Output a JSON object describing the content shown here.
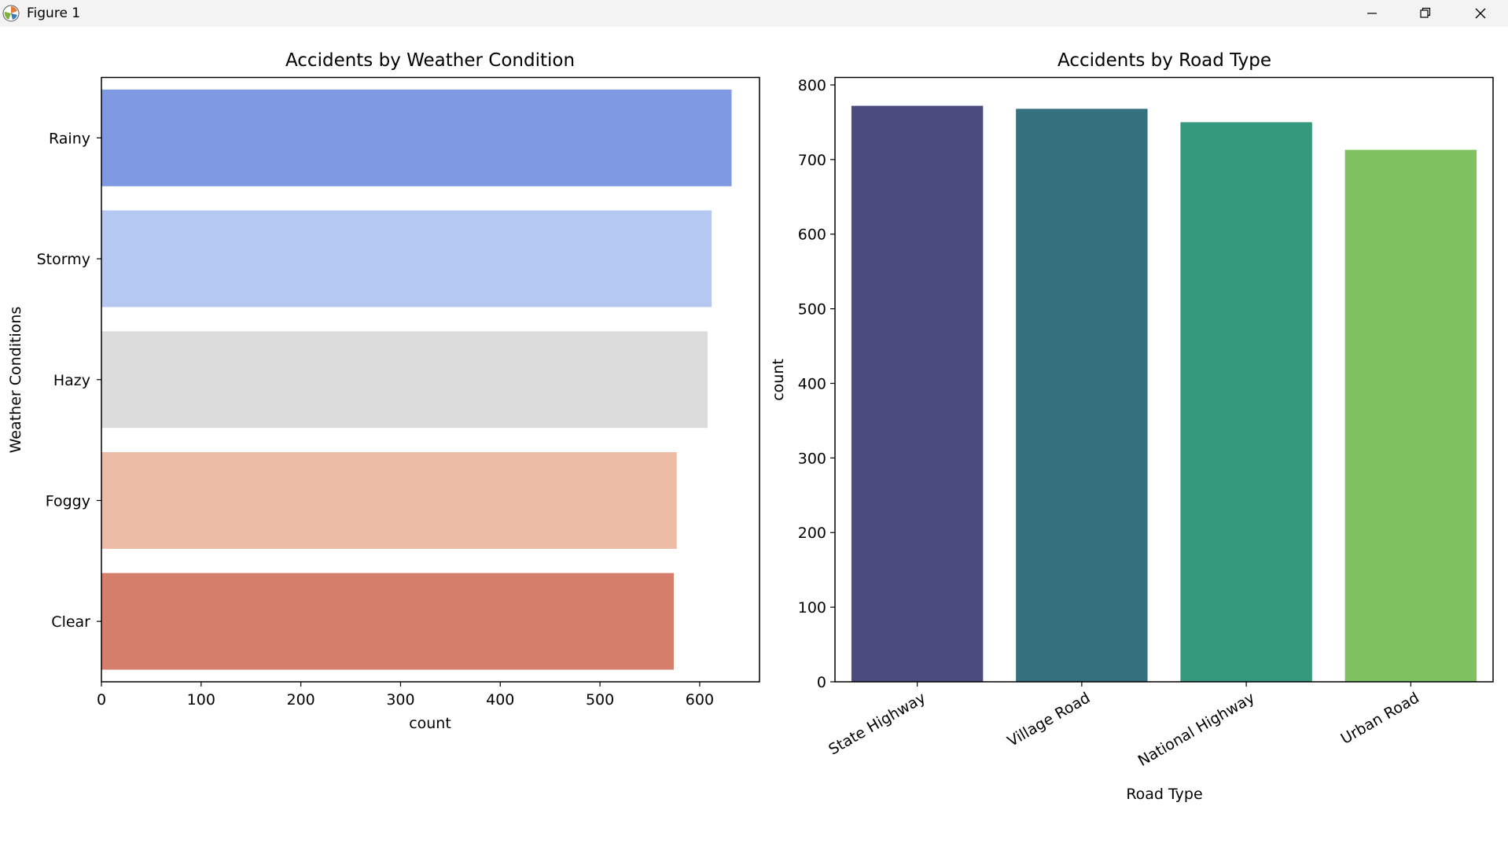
{
  "window": {
    "title": "Figure 1",
    "icons": {
      "app": "matplotlib-icon",
      "minimize": "minimize-icon",
      "maximize": "restore-icon",
      "close": "close-icon"
    }
  },
  "chart_data": [
    {
      "type": "bar",
      "orientation": "horizontal",
      "title": "Accidents by Weather Condition",
      "xlabel": "count",
      "ylabel": "Weather Conditions",
      "categories": [
        "Rainy",
        "Stormy",
        "Hazy",
        "Foggy",
        "Clear"
      ],
      "values": [
        632,
        612,
        608,
        577,
        574
      ],
      "colors": [
        "#7f9ae2",
        "#b4c8f2",
        "#dcdcdc",
        "#ecbca7",
        "#d67e6c"
      ],
      "xlim": [
        0,
        660
      ],
      "xticks": [
        0,
        100,
        200,
        300,
        400,
        500,
        600
      ],
      "grid": false
    },
    {
      "type": "bar",
      "orientation": "vertical",
      "title": "Accidents by Road Type",
      "xlabel": "Road Type",
      "ylabel": "count",
      "categories": [
        "State Highway",
        "Village Road",
        "National Highway",
        "Urban Road"
      ],
      "values": [
        772,
        768,
        750,
        713
      ],
      "colors": [
        "#4a4c7e",
        "#367180",
        "#35997d",
        "#80c261"
      ],
      "ylim": [
        0,
        810
      ],
      "yticks": [
        0,
        100,
        200,
        300,
        400,
        500,
        600,
        700,
        800
      ],
      "grid": false
    }
  ]
}
